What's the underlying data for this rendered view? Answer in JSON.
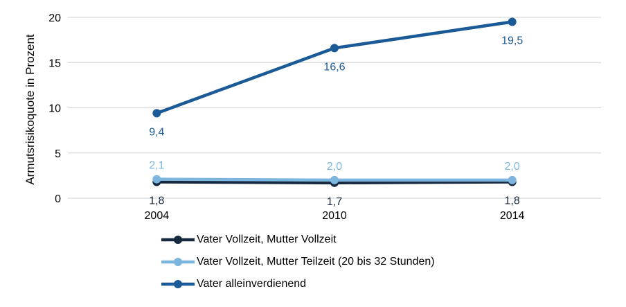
{
  "chart_data": {
    "type": "line",
    "categories": [
      "2004",
      "2010",
      "2014"
    ],
    "series": [
      {
        "name": "Vater Vollzeit, Mutter Vollzeit",
        "values": [
          1.8,
          1.7,
          1.8
        ],
        "labels": [
          "1,8",
          "1,7",
          "1,8"
        ],
        "color": "#16293E",
        "label_position": "below"
      },
      {
        "name": "Vater Vollzeit, Mutter Teilzeit (20 bis 32 Stunden)",
        "values": [
          2.1,
          2.0,
          2.0
        ],
        "labels": [
          "2,1",
          "2,0",
          "2,0"
        ],
        "color": "#7CB6DF",
        "label_position": "above"
      },
      {
        "name": "Vater alleinverdienend",
        "values": [
          9.4,
          16.6,
          19.5
        ],
        "labels": [
          "9,4",
          "16,6",
          "19,5"
        ],
        "color": "#1A5A96",
        "label_position": "below"
      }
    ],
    "title": "",
    "xlabel": "",
    "ylabel": "Armutsrisikoquote in Prozent",
    "ylim": [
      0,
      20
    ],
    "yticks": [
      0,
      5,
      10,
      15,
      20
    ],
    "grid": true,
    "gridline_color": "#D9D9D9",
    "text_color": "#000000",
    "legend_position": "bottom-left"
  }
}
